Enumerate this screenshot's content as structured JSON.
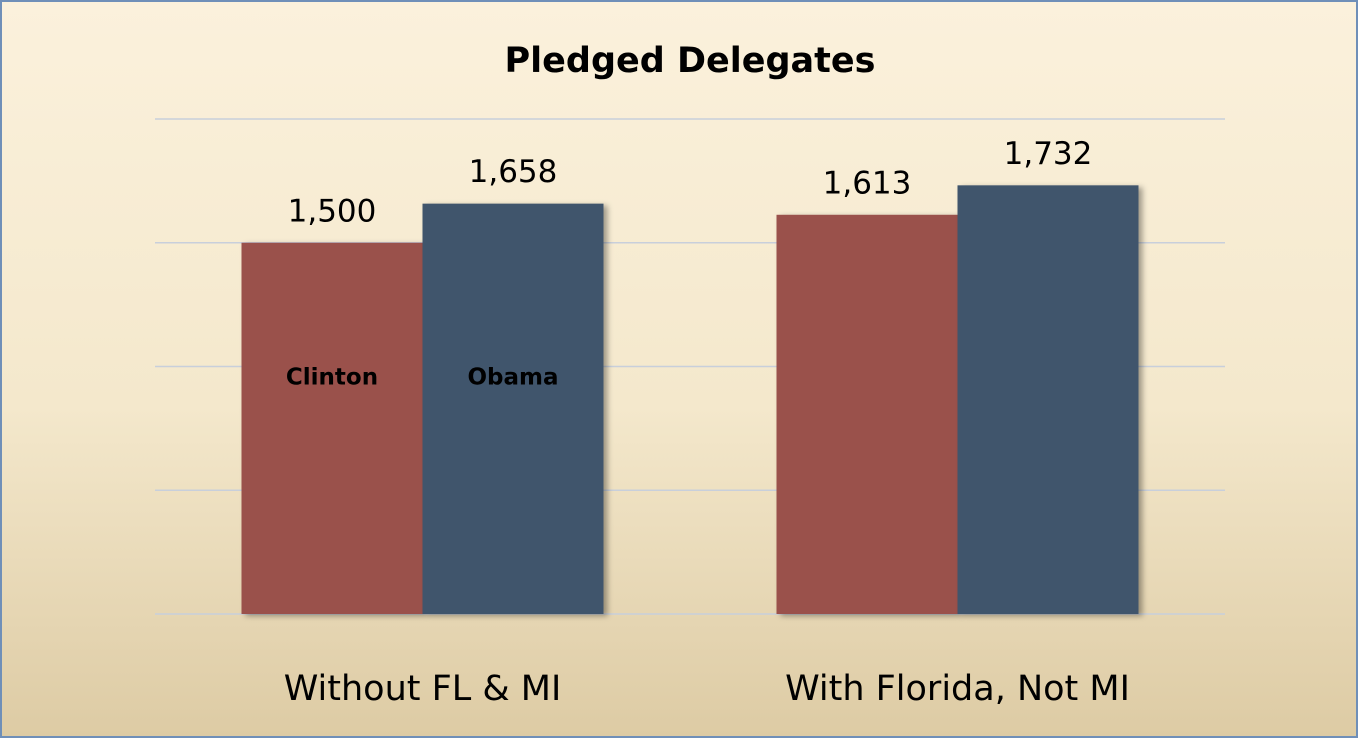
{
  "chart_data": {
    "type": "bar",
    "title": "Pledged Delegates",
    "categories": [
      "Without FL & MI",
      "With Florida, Not MI"
    ],
    "series": [
      {
        "name": "Clinton",
        "color": "#9a514c",
        "values": [
          1500,
          1613
        ],
        "value_labels": [
          "1,500",
          "1,613"
        ]
      },
      {
        "name": "Obama",
        "color": "#3f546c",
        "values": [
          1658,
          1732
        ],
        "value_labels": [
          "1,658",
          "1,732"
        ]
      }
    ],
    "ylim": [
      0,
      2000
    ],
    "yticks": [
      0,
      500,
      1000,
      1500,
      2000
    ],
    "grid": true
  }
}
